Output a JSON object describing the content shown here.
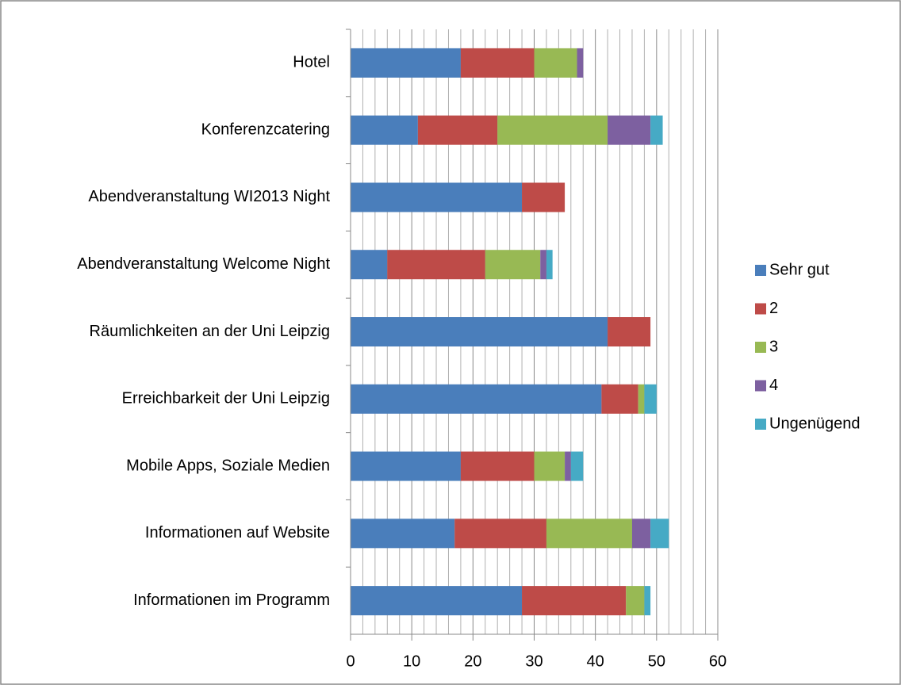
{
  "chart_data": {
    "type": "stacked_barh",
    "categories": [
      "Hotel",
      "Konferenzcatering",
      "Abendveranstaltung WI2013 Night",
      "Abendveranstaltung Welcome Night",
      "Räumlichkeiten an der Uni Leipzig",
      "Erreichbarkeit der Uni Leipzig",
      "Mobile Apps, Soziale Medien",
      "Informationen auf Website",
      "Informationen im Programm"
    ],
    "series": [
      {
        "name": "Sehr gut",
        "color": "#4a7ebb",
        "values": [
          18,
          11,
          28,
          6,
          42,
          41,
          18,
          17,
          28
        ]
      },
      {
        "name": "2",
        "color": "#be4b48",
        "values": [
          12,
          13,
          7,
          16,
          7,
          6,
          12,
          15,
          17
        ]
      },
      {
        "name": "3",
        "color": "#98b954",
        "values": [
          7,
          18,
          0,
          9,
          0,
          1,
          5,
          14,
          3
        ]
      },
      {
        "name": "4",
        "color": "#7d60a0",
        "values": [
          1,
          7,
          0,
          1,
          0,
          0,
          1,
          3,
          0
        ]
      },
      {
        "name": "Ungenügend",
        "color": "#46aac5",
        "values": [
          0,
          2,
          0,
          1,
          0,
          2,
          2,
          3,
          1
        ]
      }
    ],
    "xlim": [
      0,
      60
    ],
    "xticks": [
      0,
      10,
      20,
      30,
      40,
      50,
      60
    ],
    "xminorticks": [
      2,
      4,
      6,
      8,
      12,
      14,
      16,
      18,
      22,
      24,
      26,
      28,
      32,
      34,
      36,
      38,
      42,
      44,
      46,
      48,
      52,
      54,
      56,
      58
    ],
    "grid": true,
    "legend": "right"
  }
}
